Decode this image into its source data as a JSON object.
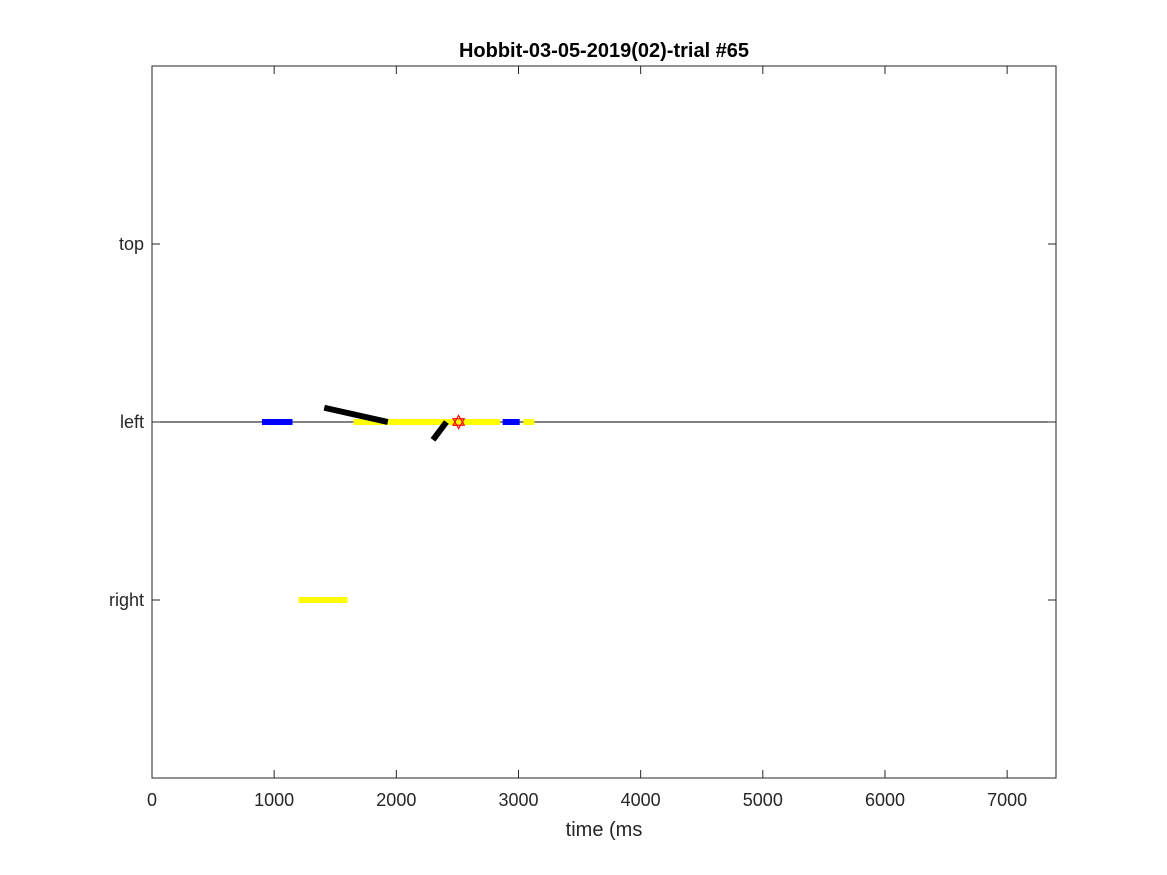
{
  "chart_data": {
    "type": "line",
    "title": "Hobbit-03-05-2019(02)-trial #65",
    "xlabel": "time (ms",
    "ylabel": "",
    "xlim": [
      0,
      7400
    ],
    "ylim": [
      0,
      4
    ],
    "x_ticks": [
      0,
      1000,
      2000,
      3000,
      4000,
      5000,
      6000,
      7000
    ],
    "x_tick_labels": [
      "0",
      "1000",
      "2000",
      "3000",
      "4000",
      "5000",
      "6000",
      "7000"
    ],
    "y_ticks": [
      1,
      2,
      3
    ],
    "y_tick_labels": [
      "right",
      "left",
      "top"
    ],
    "grid": false,
    "reference_lines": [
      {
        "y": 2,
        "color": "#000000"
      }
    ],
    "segments": [
      {
        "name": "",
        "color": "#0000ff",
        "x": [
          900,
          1150
        ],
        "y": [
          2.0,
          2.0
        ]
      },
      {
        "name": "",
        "color": "#ffff00",
        "x": [
          1650,
          2850
        ],
        "y": [
          2.0,
          2.0
        ]
      },
      {
        "name": "",
        "color": "#0000ff",
        "x": [
          2870,
          3010
        ],
        "y": [
          2.0,
          2.0
        ]
      },
      {
        "name": "",
        "color": "#ffff00",
        "x": [
          3040,
          3130
        ],
        "y": [
          2.0,
          2.0
        ]
      },
      {
        "name": "",
        "color": "#ffff00",
        "x": [
          1200,
          1600
        ],
        "y": [
          1.0,
          1.0
        ]
      },
      {
        "name": "",
        "color": "#000000",
        "x": [
          1410,
          1930
        ],
        "y": [
          2.08,
          2.0
        ]
      },
      {
        "name": "",
        "color": "#000000",
        "x": [
          2300,
          2410
        ],
        "y": [
          1.9,
          2.0
        ]
      }
    ],
    "markers": [
      {
        "x": 2510,
        "y": 2.0,
        "shape": "hexagram",
        "color": "#ff0000"
      }
    ]
  }
}
